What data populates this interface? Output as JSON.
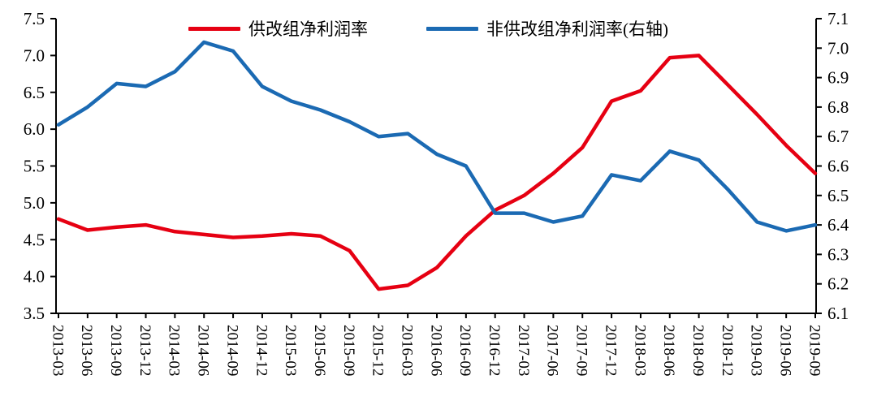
{
  "chart": {
    "background": "#ffffff",
    "axis_color": "#000000"
  },
  "legend": {
    "position": "top-center",
    "entries": [
      {
        "label": "供改组净利润率",
        "color": "#e60012"
      },
      {
        "label": "非供改组净利润率(右轴)",
        "color": "#1b6ab3"
      }
    ]
  },
  "chart_data": {
    "type": "line",
    "title": "",
    "xlabel": "",
    "ylabel_left": "",
    "ylabel_right": "",
    "grid": false,
    "legend_position": "top",
    "categories": [
      "2013-03",
      "2013-06",
      "2013-09",
      "2013-12",
      "2014-03",
      "2014-06",
      "2014-09",
      "2014-12",
      "2015-03",
      "2015-06",
      "2015-09",
      "2015-12",
      "2016-03",
      "2016-06",
      "2016-09",
      "2016-12",
      "2017-03",
      "2017-06",
      "2017-09",
      "2017-12",
      "2018-03",
      "2018-06",
      "2018-09",
      "2018-12",
      "2019-03",
      "2019-06",
      "2019-09"
    ],
    "left_axis": {
      "min": 3.5,
      "max": 7.5,
      "step": 0.5,
      "decimals": 1
    },
    "right_axis": {
      "min": 6.1,
      "max": 7.1,
      "step": 0.1,
      "decimals": 1
    },
    "series": [
      {
        "name": "供改组净利润率",
        "axis": "left",
        "color": "#e60012",
        "values": [
          4.78,
          4.63,
          4.67,
          4.7,
          4.61,
          4.57,
          4.53,
          4.55,
          4.58,
          4.55,
          4.35,
          3.83,
          3.88,
          4.12,
          4.55,
          4.9,
          5.1,
          5.4,
          5.75,
          6.38,
          6.52,
          6.97,
          7.0,
          6.6,
          6.2,
          5.78,
          5.4
        ]
      },
      {
        "name": "非供改组净利润率(右轴)",
        "axis": "right",
        "color": "#1b6ab3",
        "values": [
          6.74,
          6.8,
          6.88,
          6.87,
          6.92,
          7.02,
          6.99,
          6.87,
          6.82,
          6.79,
          6.75,
          6.7,
          6.71,
          6.64,
          6.6,
          6.44,
          6.44,
          6.41,
          6.43,
          6.57,
          6.55,
          6.65,
          6.62,
          6.52,
          6.41,
          6.38,
          6.4
        ]
      }
    ]
  }
}
